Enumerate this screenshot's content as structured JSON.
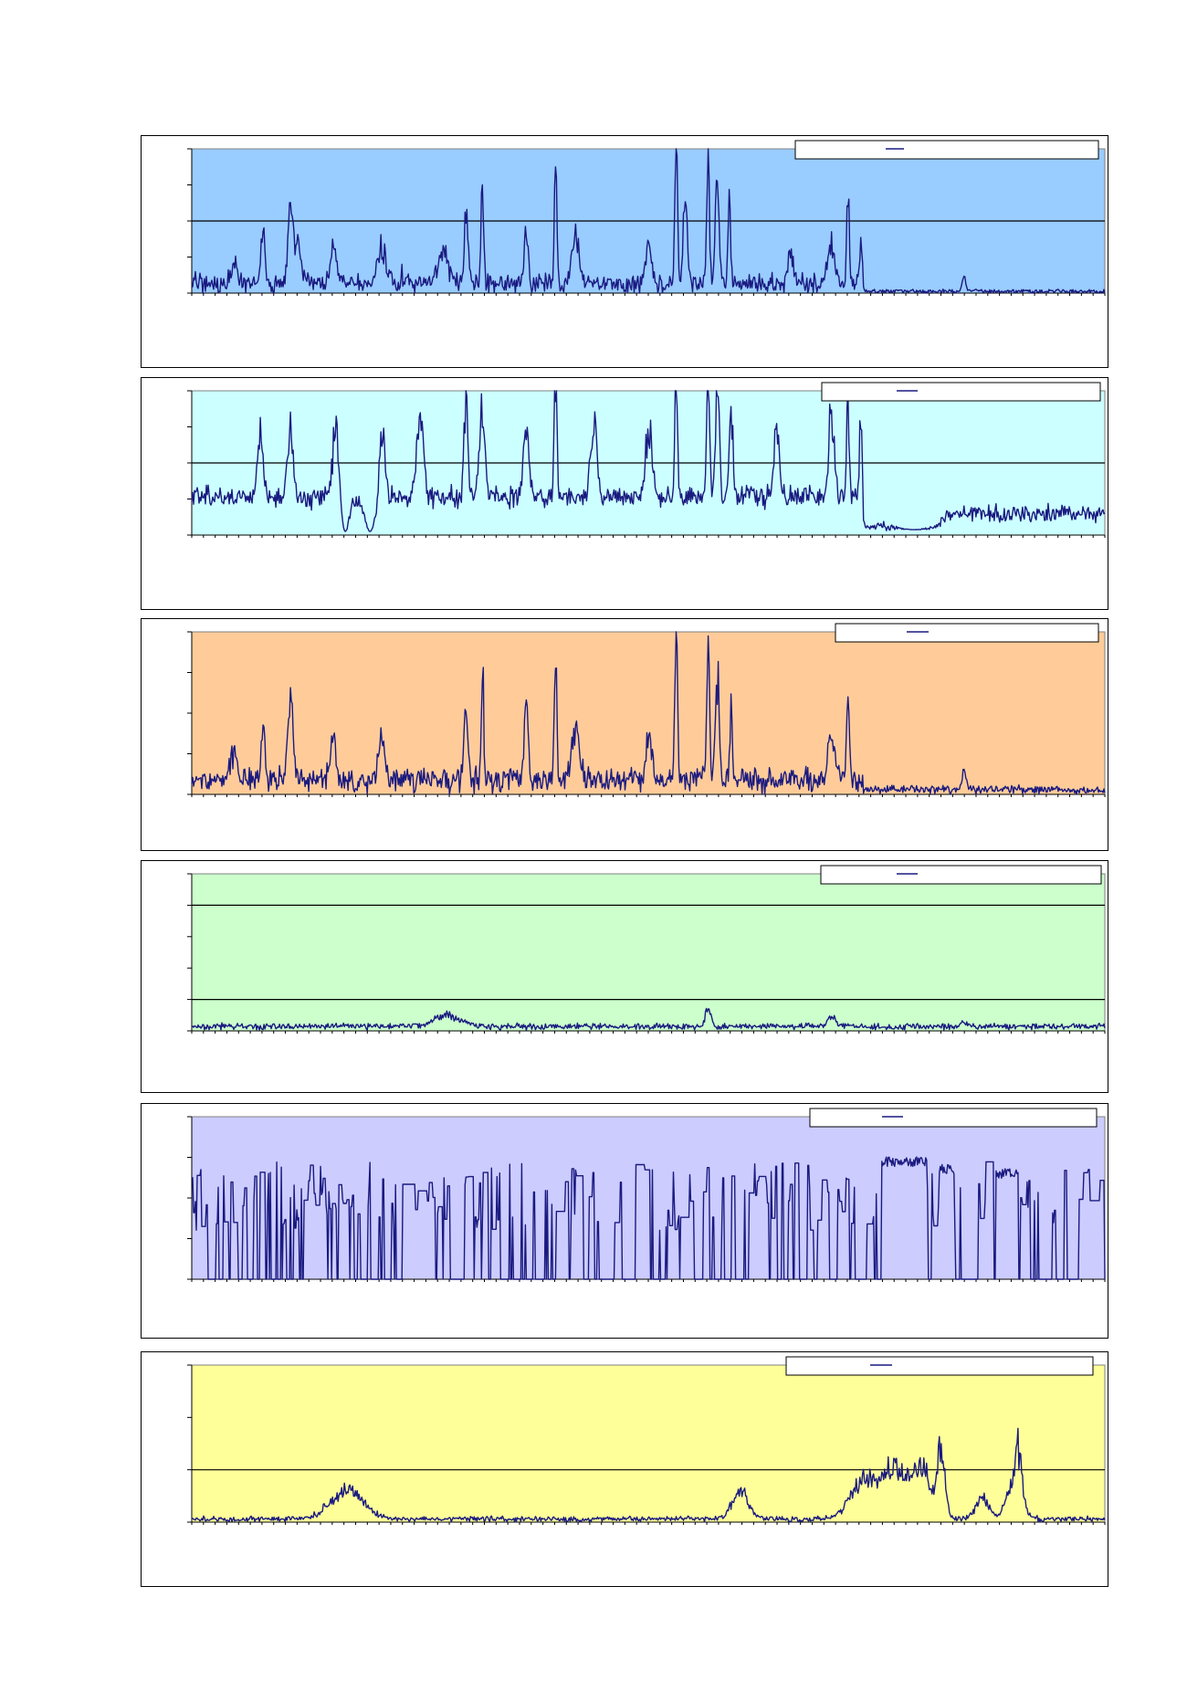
{
  "page": {
    "background": "#ffffff"
  },
  "series_color": "#1a1a80",
  "chart_data": [
    {
      "type": "line",
      "panel_id": "p1",
      "background": "#99ccff",
      "grid": "horizontal",
      "legend_placement": "top-right",
      "ylim": [
        0,
        4
      ],
      "gridline_y": 2,
      "n_points": 1000,
      "baseline": 0.08,
      "noise": 0.09,
      "segments": [
        [
          0,
          735,
          0.28,
          0.22
        ],
        [
          735,
          1000,
          0.05,
          0.05
        ]
      ],
      "peaks": [
        [
          46,
          0.55,
          5
        ],
        [
          78,
          1.45,
          3
        ],
        [
          108,
          1.9,
          4
        ],
        [
          116,
          1.0,
          5
        ],
        [
          155,
          1.1,
          4
        ],
        [
          208,
          1.0,
          6
        ],
        [
          275,
          0.95,
          7
        ],
        [
          300,
          1.95,
          3
        ],
        [
          318,
          3.0,
          2
        ],
        [
          366,
          1.45,
          3
        ],
        [
          398,
          3.3,
          2
        ],
        [
          420,
          1.2,
          6
        ],
        [
          500,
          1.0,
          4
        ],
        [
          530,
          3.9,
          2
        ],
        [
          540,
          2.2,
          3
        ],
        [
          565,
          4.0,
          2
        ],
        [
          575,
          2.8,
          3
        ],
        [
          588,
          2.3,
          2
        ],
        [
          655,
          0.8,
          4
        ],
        [
          700,
          1.1,
          5
        ],
        [
          718,
          2.35,
          2
        ],
        [
          732,
          1.2,
          2
        ],
        [
          845,
          0.35,
          3
        ]
      ],
      "spikes": [
        [
          230,
          0.8
        ],
        [
          318,
          3.0
        ],
        [
          398,
          3.5
        ],
        [
          530,
          4.0
        ],
        [
          565,
          4.0
        ],
        [
          718,
          2.4
        ]
      ]
    },
    {
      "type": "line",
      "panel_id": "p2",
      "background": "#ccffff",
      "grid": "horizontal",
      "legend_placement": "top-right",
      "ylim": [
        0,
        4
      ],
      "gridline_y": 2,
      "n_points": 1000,
      "baseline": 0.95,
      "noise": 0.18,
      "segments": [
        [
          0,
          735,
          1.05,
          0.25
        ],
        [
          735,
          820,
          0.25,
          0.1
        ],
        [
          820,
          1000,
          0.6,
          0.2
        ]
      ],
      "peaks": [
        [
          75,
          1.9,
          4
        ],
        [
          108,
          2.1,
          4
        ],
        [
          158,
          2.0,
          5
        ],
        [
          208,
          2.3,
          4
        ],
        [
          250,
          2.2,
          5
        ],
        [
          300,
          2.7,
          3
        ],
        [
          318,
          2.4,
          4
        ],
        [
          366,
          2.2,
          4
        ],
        [
          398,
          3.7,
          2
        ],
        [
          440,
          2.0,
          5
        ],
        [
          500,
          2.0,
          5
        ],
        [
          530,
          3.95,
          2
        ],
        [
          565,
          4.0,
          2
        ],
        [
          575,
          3.0,
          3
        ],
        [
          590,
          2.3,
          3
        ],
        [
          640,
          1.9,
          4
        ],
        [
          700,
          2.4,
          4
        ],
        [
          718,
          2.9,
          2
        ],
        [
          732,
          2.4,
          2
        ]
      ],
      "dips": [
        [
          168,
          0.1,
          6
        ],
        [
          195,
          0.1,
          8
        ],
        [
          790,
          0.15,
          20
        ]
      ],
      "spikes": [
        [
          398,
          3.7
        ],
        [
          530,
          4.0
        ],
        [
          565,
          4.0
        ]
      ]
    },
    {
      "type": "line",
      "panel_id": "p3",
      "background": "#ffcc99",
      "grid": "none",
      "legend_placement": "top-right",
      "ylim": [
        0,
        4
      ],
      "gridline_y": null,
      "n_points": 1000,
      "baseline": 0.25,
      "noise": 0.12,
      "segments": [
        [
          0,
          735,
          0.35,
          0.25
        ],
        [
          735,
          1000,
          0.12,
          0.08
        ]
      ],
      "peaks": [
        [
          46,
          0.7,
          5
        ],
        [
          78,
          1.45,
          3
        ],
        [
          108,
          1.9,
          4
        ],
        [
          155,
          1.15,
          4
        ],
        [
          208,
          1.2,
          5
        ],
        [
          300,
          1.8,
          3
        ],
        [
          318,
          2.7,
          2
        ],
        [
          366,
          1.7,
          3
        ],
        [
          398,
          3.1,
          2
        ],
        [
          420,
          1.3,
          6
        ],
        [
          500,
          1.2,
          4
        ],
        [
          530,
          3.95,
          2
        ],
        [
          565,
          3.9,
          2
        ],
        [
          575,
          2.6,
          3
        ],
        [
          590,
          1.6,
          2
        ],
        [
          700,
          1.1,
          5
        ],
        [
          718,
          2.3,
          2
        ],
        [
          845,
          0.45,
          3
        ]
      ],
      "spikes": [
        [
          318,
          2.8
        ],
        [
          398,
          3.1
        ],
        [
          530,
          4.0
        ],
        [
          565,
          3.9
        ],
        [
          718,
          2.4
        ]
      ]
    },
    {
      "type": "line",
      "panel_id": "p4",
      "background": "#ccffcc",
      "grid": "horizontal",
      "legend_placement": "top-right",
      "ylim": [
        0,
        5
      ],
      "gridline_y": [
        1,
        4
      ],
      "n_points": 1000,
      "baseline": 0.12,
      "noise": 0.06,
      "segments": [
        [
          0,
          1000,
          0.14,
          0.08
        ]
      ],
      "peaks": [
        [
          280,
          0.35,
          20
        ],
        [
          565,
          0.6,
          4
        ],
        [
          700,
          0.3,
          6
        ],
        [
          845,
          0.12,
          5
        ]
      ],
      "spikes": [
        [
          565,
          0.7
        ]
      ]
    },
    {
      "type": "line",
      "panel_id": "p5",
      "background": "#ccccff",
      "grid": "none",
      "legend_placement": "top-right",
      "ylim": [
        0,
        4
      ],
      "gridline_y": null,
      "n_points": 1000,
      "mode": "square",
      "baseline": 0.0,
      "noise": 0.0,
      "segments": [],
      "peaks": [],
      "plateaus": [
        [
          755,
          805,
          2.9
        ],
        [
          818,
          835,
          2.7
        ],
        [
          880,
          905,
          2.6
        ]
      ]
    },
    {
      "type": "line",
      "panel_id": "p6",
      "background": "#ffff99",
      "grid": "horizontal",
      "legend_placement": "top-right",
      "ylim": [
        0,
        3
      ],
      "gridline_y": 1,
      "n_points": 1000,
      "baseline": 0.05,
      "noise": 0.03,
      "segments": [
        [
          0,
          1000,
          0.06,
          0.04
        ]
      ],
      "peaks": [
        [
          170,
          0.55,
          25
        ],
        [
          600,
          0.55,
          12
        ],
        [
          735,
          0.7,
          20
        ],
        [
          770,
          1.0,
          20
        ],
        [
          800,
          0.9,
          12
        ],
        [
          820,
          1.35,
          6
        ],
        [
          865,
          0.4,
          10
        ],
        [
          900,
          0.7,
          12
        ],
        [
          905,
          0.95,
          4
        ]
      ],
      "spikes": [
        [
          145,
          0.35
        ],
        [
          168,
          0.6
        ],
        [
          820,
          1.5
        ],
        [
          905,
          1.0
        ]
      ]
    }
  ]
}
